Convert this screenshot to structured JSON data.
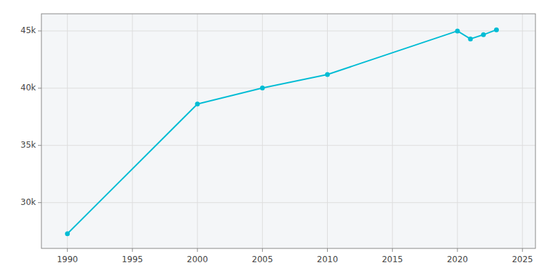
{
  "chart_data": {
    "type": "line",
    "x": [
      1990,
      2000,
      2005,
      2010,
      2020,
      2021,
      2022,
      2023
    ],
    "values": [
      27285,
      38616,
      40023,
      41193,
      44999,
      44306,
      44672,
      45103
    ],
    "color": "#00bcd4",
    "marker": "circle",
    "xlim": [
      1988,
      2026
    ],
    "ylim": [
      26000,
      46500
    ],
    "xticks": [
      1990,
      1995,
      2000,
      2005,
      2010,
      2015,
      2020,
      2025
    ],
    "yticks": [
      {
        "value": 30000,
        "label": "30k"
      },
      {
        "value": 35000,
        "label": "35k"
      },
      {
        "value": 40000,
        "label": "40k"
      },
      {
        "value": 45000,
        "label": "45k"
      }
    ],
    "grid": true
  }
}
